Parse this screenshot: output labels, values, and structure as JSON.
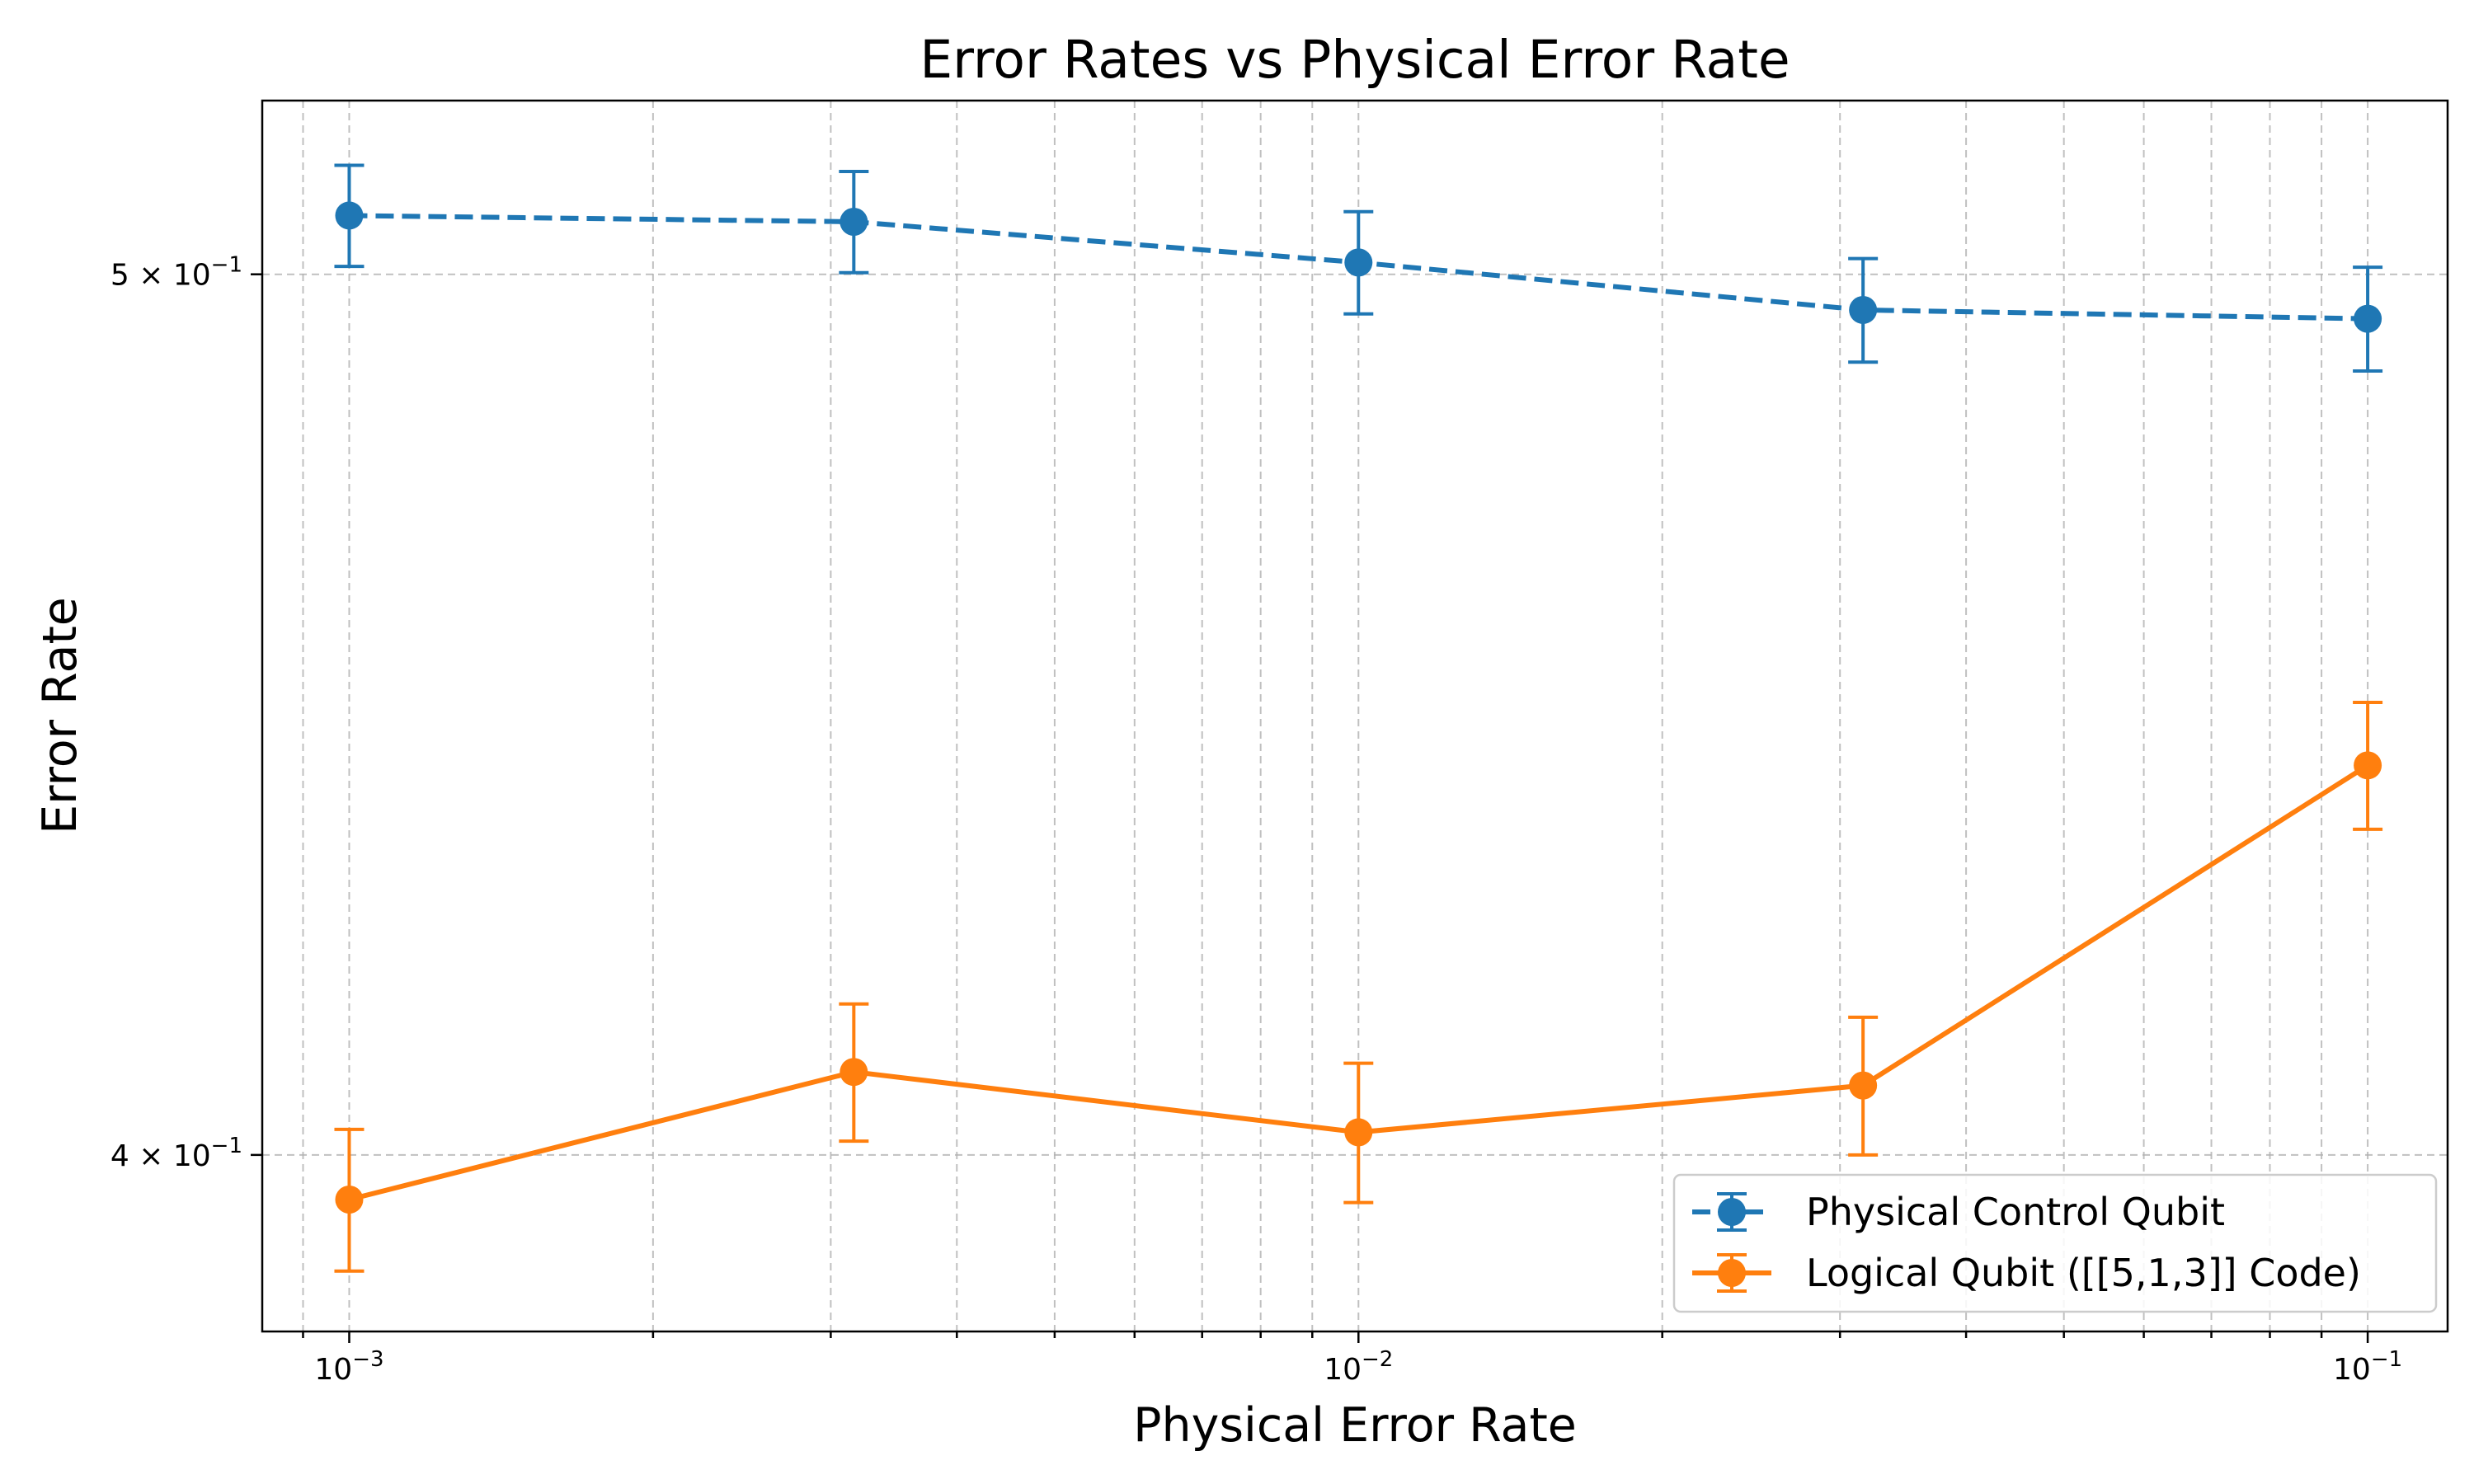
{
  "chart_data": {
    "type": "line",
    "title": "Error Rates vs Physical Error Rate",
    "xlabel": "Physical Error Rate",
    "ylabel": "Error Rate",
    "x_scale": "log",
    "y_scale": "log",
    "xlim": [
      0.00082,
      0.12
    ],
    "ylim": [
      0.3825,
      0.5225
    ],
    "grid": "both (major and minor), dashed",
    "legend_position": "lower-right",
    "x": [
      0.001,
      0.003162,
      0.01,
      0.03162,
      0.1
    ],
    "x_ticks": [
      {
        "value": 0.001,
        "base": "10",
        "exp": "−3"
      },
      {
        "value": 0.01,
        "base": "10",
        "exp": "−2"
      },
      {
        "value": 0.1,
        "base": "10",
        "exp": "−1"
      }
    ],
    "y_ticks": [
      {
        "value": 0.4,
        "base": "4 × 10",
        "exp": "−1"
      },
      {
        "value": 0.5,
        "base": "5 × 10",
        "exp": "−1"
      }
    ],
    "series": [
      {
        "name": "Physical Control Qubit",
        "color": "#1f77b4",
        "line_style": "dashed",
        "marker": "circle",
        "values": [
          0.5075,
          0.5067,
          0.5015,
          0.4955,
          0.4944
        ],
        "error": [
          0.0065,
          0.0065,
          0.0065,
          0.0065,
          0.0065
        ]
      },
      {
        "name": "Logical Qubit ([[5,1,3]] Code)",
        "color": "#ff7f0e",
        "line_style": "solid",
        "marker": "circle",
        "values": [
          0.3955,
          0.4085,
          0.4023,
          0.4071,
          0.4415
        ],
        "error": [
          0.0071,
          0.0071,
          0.0071,
          0.0071,
          0.0071
        ]
      }
    ]
  }
}
